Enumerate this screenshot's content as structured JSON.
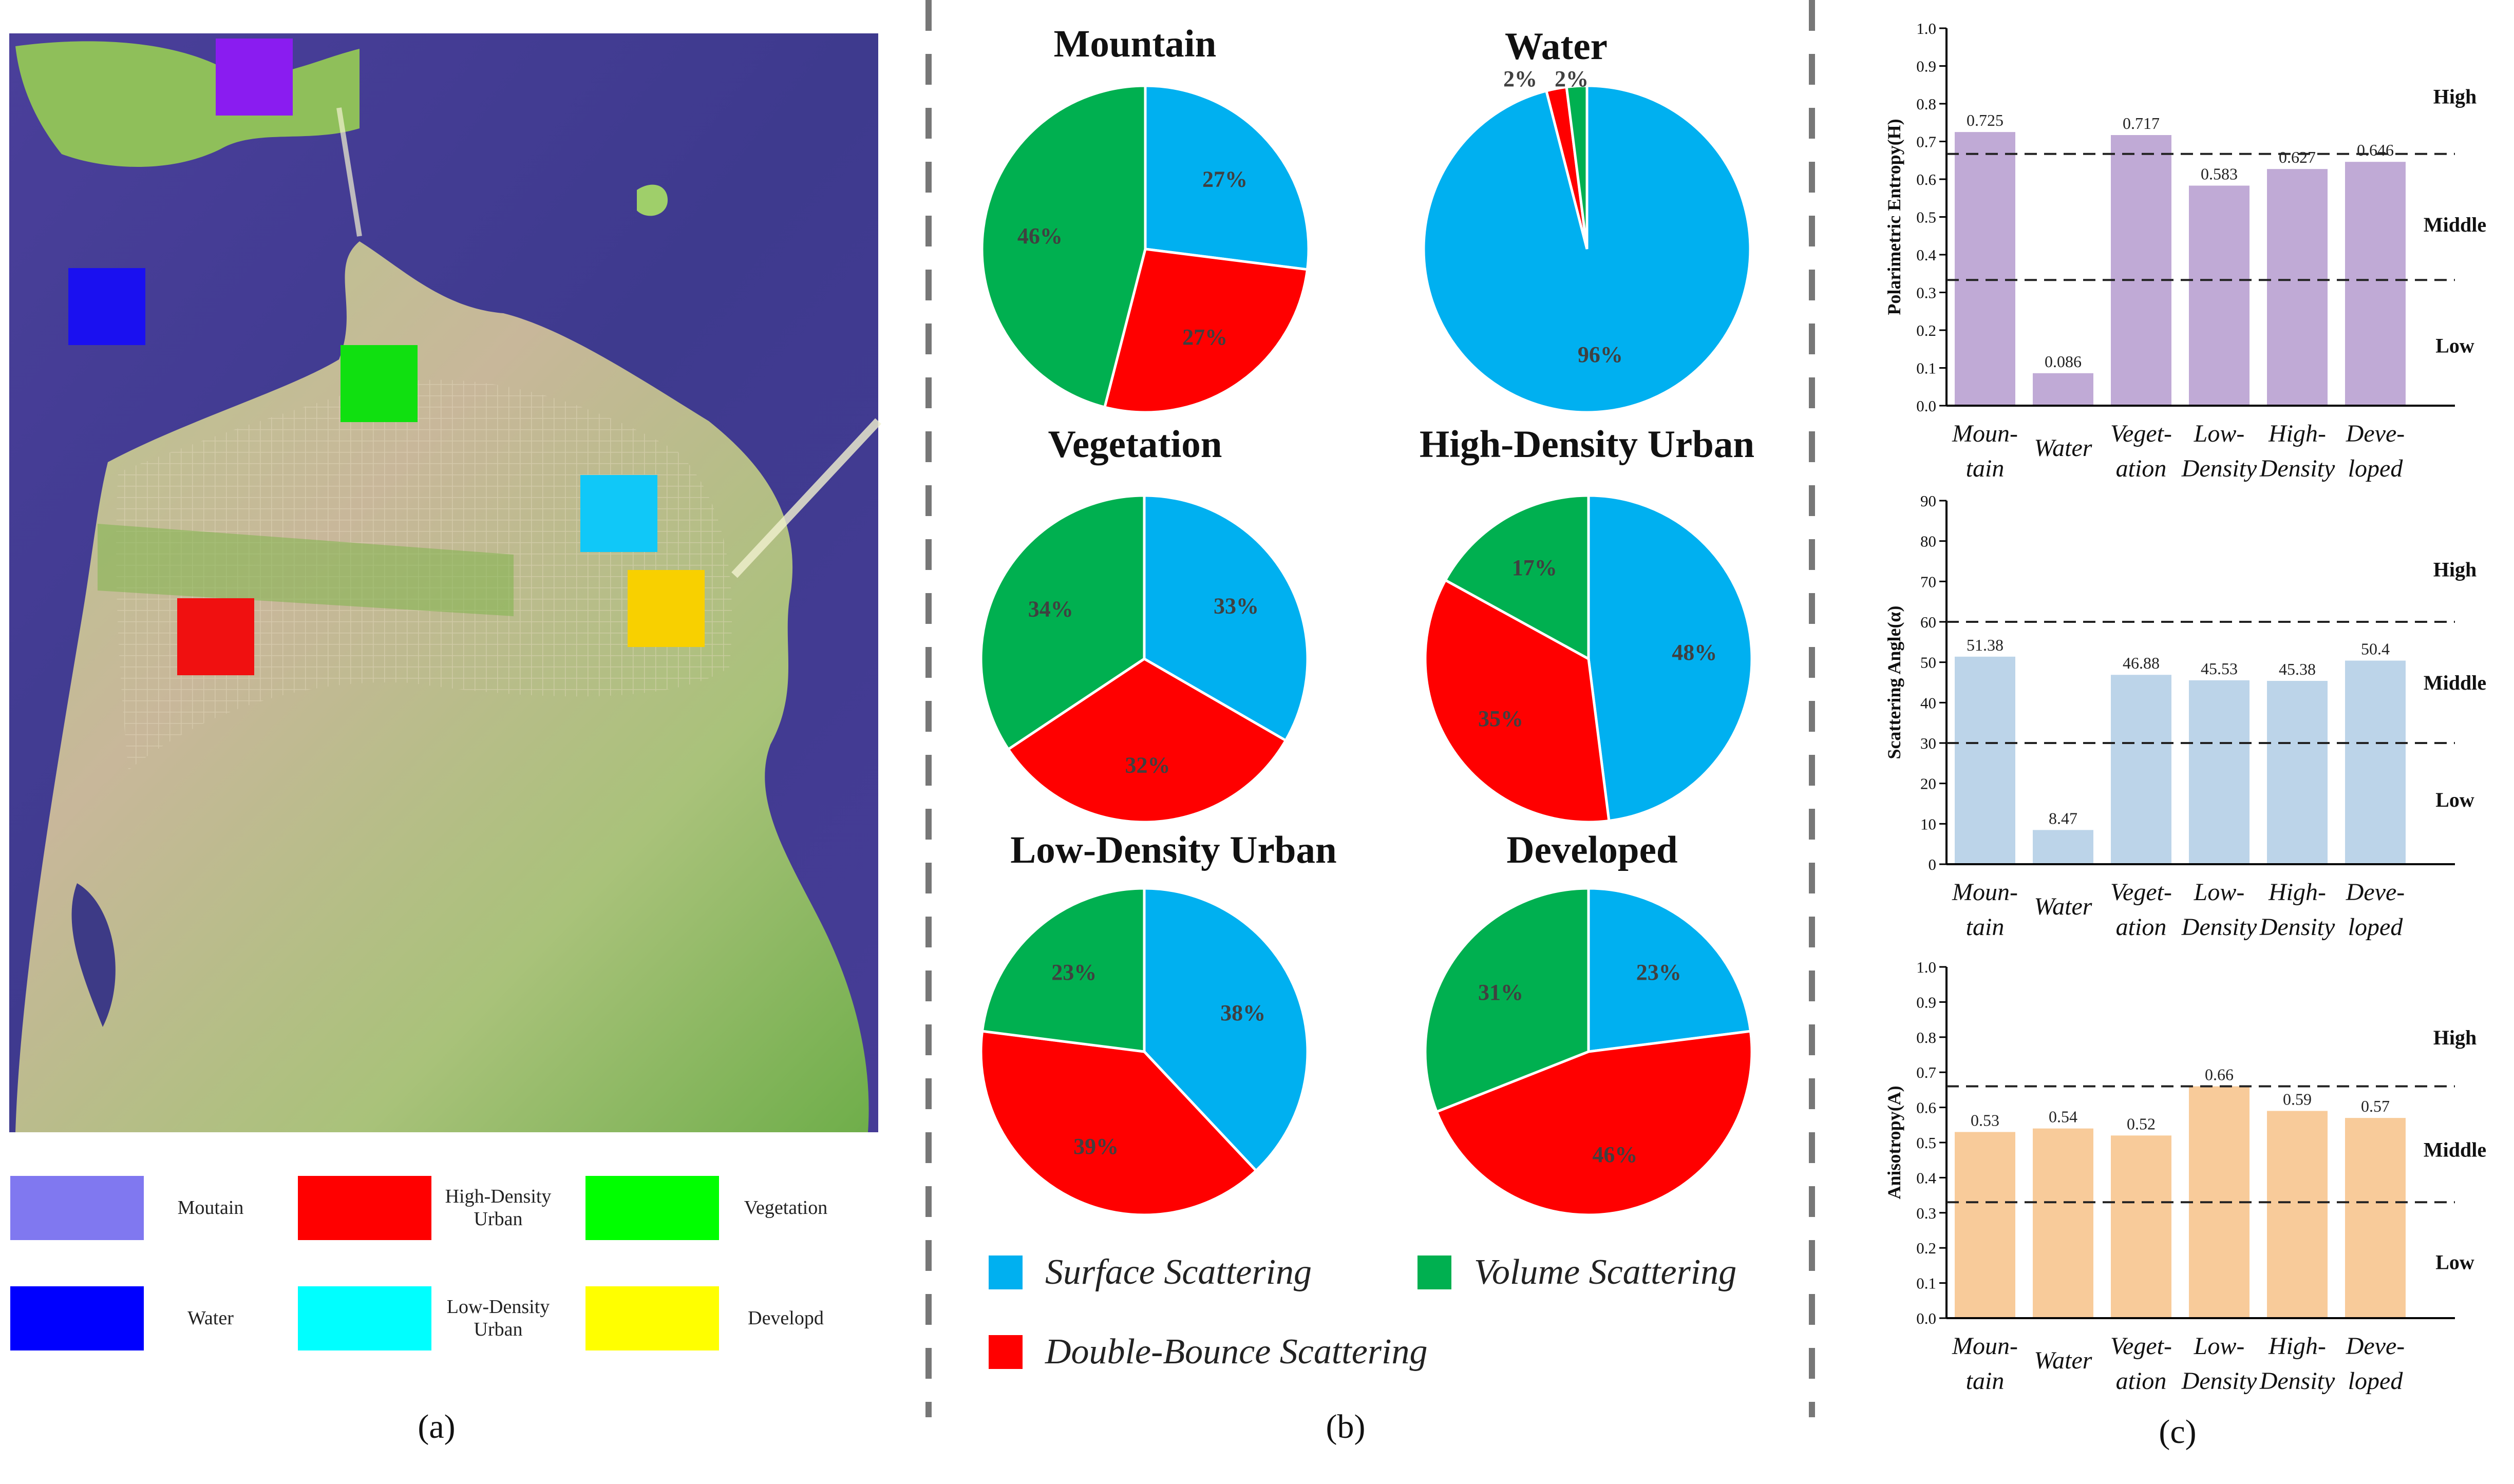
{
  "panels": {
    "a": "(a)",
    "b": "(b)",
    "c": "(c)"
  },
  "map_legend": [
    {
      "label": "Moutain",
      "color": "#8078f0"
    },
    {
      "label": "High-Density Urban",
      "color": "#ff0000"
    },
    {
      "label": "Vegetation",
      "color": "#00ff00"
    },
    {
      "label": "Water",
      "color": "#0000ff"
    },
    {
      "label": "Low-Density Urban",
      "color": "#00ffff"
    },
    {
      "label": "Developd",
      "color": "#ffff00"
    }
  ],
  "map_markers": [
    {
      "class": "Moutain",
      "color": "#8a1cf0"
    },
    {
      "class": "Water",
      "color": "#1a10f0"
    },
    {
      "class": "Vegetation",
      "color": "#10e010"
    },
    {
      "class": "Low-Density Urban",
      "color": "#10c8f8"
    },
    {
      "class": "Developd",
      "color": "#f8d000"
    },
    {
      "class": "High-Density Urban",
      "color": "#f01010"
    }
  ],
  "scatter_legend": [
    {
      "label": "Surface Scattering",
      "color": "#00b0f0"
    },
    {
      "label": "Volume Scattering",
      "color": "#00b050"
    },
    {
      "label": "Double-Bounce  Scattering",
      "color": "#ff0000"
    }
  ],
  "chart_data": [
    {
      "type": "pie",
      "title": "Mountain",
      "slices": [
        {
          "name": "Surface Scattering",
          "value": 27,
          "label": "27%",
          "color": "#00b0f0"
        },
        {
          "name": "Double-Bounce Scattering",
          "value": 27,
          "label": "27%",
          "color": "#ff0000"
        },
        {
          "name": "Volume Scattering",
          "value": 46,
          "label": "46%",
          "color": "#00b050"
        }
      ]
    },
    {
      "type": "pie",
      "title": "Water",
      "slices": [
        {
          "name": "Surface Scattering",
          "value": 96,
          "label": "96%",
          "color": "#00b0f0"
        },
        {
          "name": "Double-Bounce Scattering",
          "value": 2,
          "label": "2%",
          "color": "#ff0000"
        },
        {
          "name": "Volume Scattering",
          "value": 2,
          "label": "2%",
          "color": "#00b050"
        }
      ]
    },
    {
      "type": "pie",
      "title": "Vegetation",
      "slices": [
        {
          "name": "Surface Scattering",
          "value": 33,
          "label": "33%",
          "color": "#00b0f0"
        },
        {
          "name": "Double-Bounce Scattering",
          "value": 32,
          "label": "32%",
          "color": "#ff0000"
        },
        {
          "name": "Volume Scattering",
          "value": 34,
          "label": "34%",
          "color": "#00b050"
        }
      ]
    },
    {
      "type": "pie",
      "title": "High-Density Urban",
      "slices": [
        {
          "name": "Surface Scattering",
          "value": 48,
          "label": "48%",
          "color": "#00b0f0"
        },
        {
          "name": "Double-Bounce Scattering",
          "value": 35,
          "label": "35%",
          "color": "#ff0000"
        },
        {
          "name": "Volume Scattering",
          "value": 17,
          "label": "17%",
          "color": "#00b050"
        }
      ]
    },
    {
      "type": "pie",
      "title": "Low-Density Urban",
      "slices": [
        {
          "name": "Surface Scattering",
          "value": 38,
          "label": "38%",
          "color": "#00b0f0"
        },
        {
          "name": "Double-Bounce Scattering",
          "value": 39,
          "label": "39%",
          "color": "#ff0000"
        },
        {
          "name": "Volume Scattering",
          "value": 23,
          "label": "23%",
          "color": "#00b050"
        }
      ]
    },
    {
      "type": "pie",
      "title": "Developed",
      "slices": [
        {
          "name": "Surface Scattering",
          "value": 23,
          "label": "23%",
          "color": "#00b0f0"
        },
        {
          "name": "Double-Bounce Scattering",
          "value": 46,
          "label": "46%",
          "color": "#ff0000"
        },
        {
          "name": "Volume Scattering",
          "value": 31,
          "label": "31%",
          "color": "#00b050"
        }
      ]
    },
    {
      "type": "bar",
      "ylabel": "Polarimetric Entropy(H)",
      "categories": [
        [
          "Moun-",
          "tain"
        ],
        [
          "Water"
        ],
        [
          "Veget-",
          "ation"
        ],
        [
          "Low-",
          "Density"
        ],
        [
          "High-",
          "Density"
        ],
        [
          "Deve-",
          "loped"
        ]
      ],
      "values": [
        0.725,
        0.086,
        0.717,
        0.583,
        0.627,
        0.646
      ],
      "value_labels": [
        "0.725",
        "0.086",
        "0.717",
        "0.583",
        "0.627",
        "0.646"
      ],
      "ylim": [
        0,
        1.0
      ],
      "yticks": [
        0.0,
        0.1,
        0.2,
        0.3,
        0.4,
        0.5,
        0.6,
        0.7,
        0.8,
        0.9,
        1.0
      ],
      "ytick_labels": [
        "0.0",
        "0.1",
        "0.2",
        "0.3",
        "0.4",
        "0.5",
        "0.6",
        "0.7",
        "0.8",
        "0.9",
        "1.0"
      ],
      "thresholds": [
        0.667,
        0.333
      ],
      "zones": [
        {
          "label": "High",
          "y": 0.82
        },
        {
          "label": "Middle",
          "y": 0.48
        },
        {
          "label": "Low",
          "y": 0.16
        }
      ],
      "color": "#c0aad6"
    },
    {
      "type": "bar",
      "ylabel": "Scattering Angle(α)",
      "categories": [
        [
          "Moun-",
          "tain"
        ],
        [
          "Water"
        ],
        [
          "Veget-",
          "ation"
        ],
        [
          "Low-",
          "Density"
        ],
        [
          "High-",
          "Density"
        ],
        [
          "Deve-",
          "loped"
        ]
      ],
      "values": [
        51.38,
        8.47,
        46.88,
        45.53,
        45.38,
        50.4
      ],
      "value_labels": [
        "51.38",
        "8.47",
        "46.88",
        "45.53",
        "45.38",
        "50.4"
      ],
      "ylim": [
        0,
        90
      ],
      "yticks": [
        0,
        10,
        20,
        30,
        40,
        50,
        60,
        70,
        80,
        90
      ],
      "ytick_labels": [
        "0",
        "10",
        "20",
        "30",
        "40",
        "50",
        "60",
        "70",
        "80",
        "90"
      ],
      "thresholds": [
        60,
        30
      ],
      "zones": [
        {
          "label": "High",
          "y": 73
        },
        {
          "label": "Middle",
          "y": 45
        },
        {
          "label": "Low",
          "y": 16
        }
      ],
      "color": "#bcd4e9"
    },
    {
      "type": "bar",
      "ylabel": "Anisotropy(A)",
      "categories": [
        [
          "Moun-",
          "tain"
        ],
        [
          "Water"
        ],
        [
          "Veget-",
          "ation"
        ],
        [
          "Low-",
          "Density"
        ],
        [
          "High-",
          "Density"
        ],
        [
          "Deve-",
          "loped"
        ]
      ],
      "values": [
        0.53,
        0.54,
        0.52,
        0.66,
        0.59,
        0.57
      ],
      "value_labels": [
        "0.53",
        "0.54",
        "0.52",
        "0.66",
        "0.59",
        "0.57"
      ],
      "ylim": [
        0,
        1.0
      ],
      "yticks": [
        0.0,
        0.1,
        0.2,
        0.3,
        0.4,
        0.5,
        0.6,
        0.7,
        0.8,
        0.9,
        1.0
      ],
      "ytick_labels": [
        "0.0",
        "0.1",
        "0.2",
        "0.3",
        "0.4",
        "0.5",
        "0.6",
        "0.7",
        "0.8",
        "0.9",
        "1.0"
      ],
      "thresholds": [
        0.66,
        0.33
      ],
      "zones": [
        {
          "label": "High",
          "y": 0.8
        },
        {
          "label": "Middle",
          "y": 0.48
        },
        {
          "label": "Low",
          "y": 0.16
        }
      ],
      "color": "#f8cb9a"
    }
  ]
}
